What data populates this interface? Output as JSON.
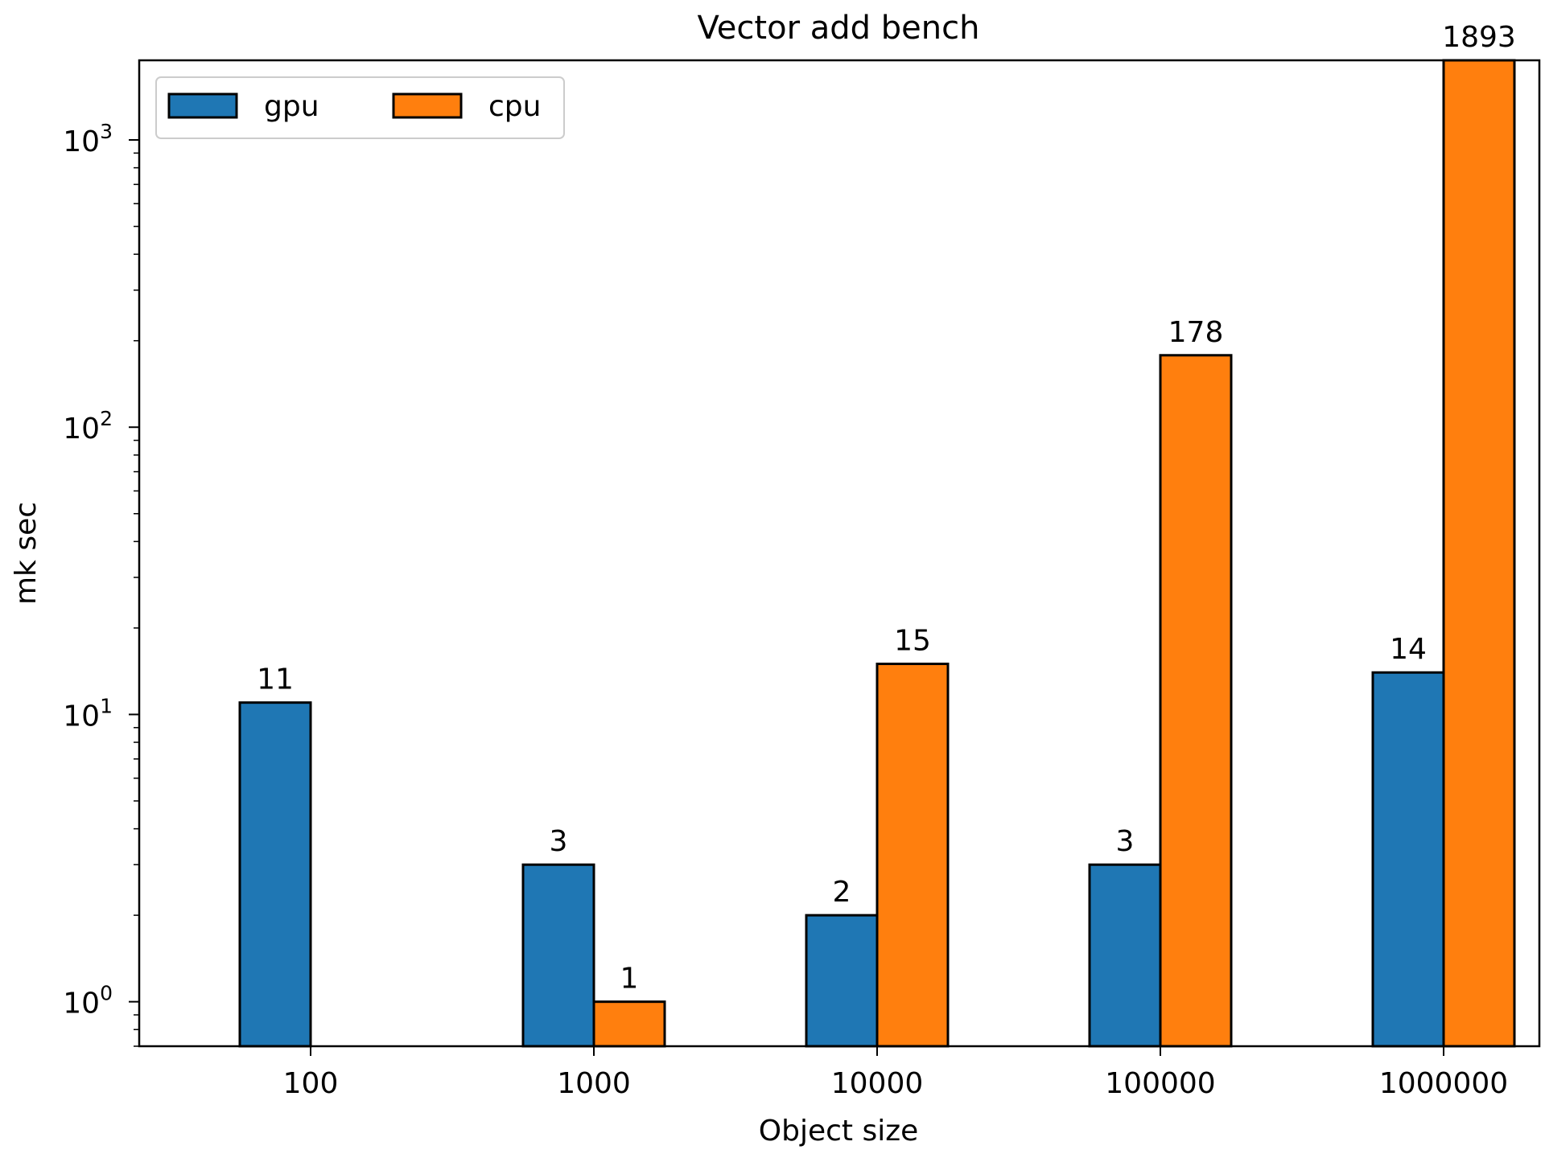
{
  "chart_data": {
    "type": "bar",
    "title": "Vector add bench",
    "xlabel": "Object size",
    "ylabel": "mk sec",
    "yscale": "log",
    "ylim": [
      0.7,
      1893
    ],
    "grid": false,
    "legend_placement": "top-left",
    "categories": [
      "100",
      "1000",
      "10000",
      "100000",
      "1000000"
    ],
    "series": [
      {
        "name": "gpu",
        "color": "#1f77b4",
        "values": [
          11,
          3,
          2,
          3,
          14
        ],
        "labels": [
          "11",
          "3",
          "2",
          "3",
          "14"
        ]
      },
      {
        "name": "cpu",
        "color": "#ff7f0e",
        "values": [
          null,
          1,
          15,
          178,
          1893
        ],
        "labels": [
          "",
          "1",
          "15",
          "178",
          "1893"
        ]
      }
    ],
    "yticks": [
      {
        "base": "10",
        "exp": "0",
        "value": 1
      },
      {
        "base": "10",
        "exp": "1",
        "value": 10
      },
      {
        "base": "10",
        "exp": "2",
        "value": 100
      },
      {
        "base": "10",
        "exp": "3",
        "value": 1000
      }
    ]
  }
}
